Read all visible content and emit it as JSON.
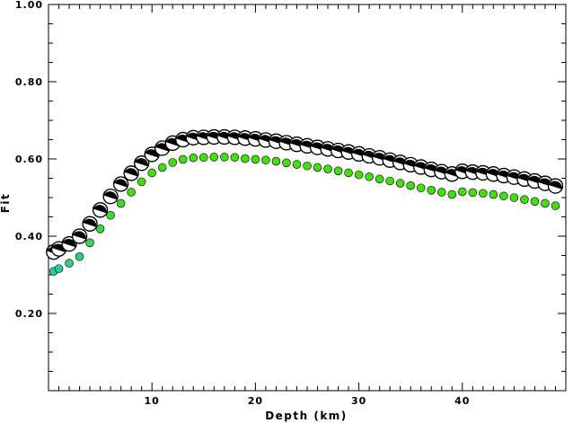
{
  "chart_data": {
    "type": "scatter",
    "title": "",
    "xlabel": "Depth (km)",
    "ylabel": "Fit",
    "xlim": [
      0,
      50
    ],
    "ylim": [
      0,
      1.0
    ],
    "xticks": [
      10,
      20,
      30,
      40
    ],
    "xtick_labels": [
      "10",
      "20",
      "30",
      "40"
    ],
    "yticks": [
      0.2,
      0.4,
      0.6,
      0.8,
      1.0
    ],
    "ytick_labels": [
      "0.20",
      "0.40",
      "0.60",
      "0.80",
      "1.00"
    ],
    "grid": false,
    "legend": "none",
    "series": [
      {
        "marker": "focal-mechanism",
        "x": [
          0.5,
          1,
          2,
          3,
          4,
          5,
          6,
          7,
          8,
          9,
          10,
          11,
          12,
          13,
          14,
          15,
          16,
          17,
          18,
          19,
          20,
          21,
          22,
          23,
          24,
          25,
          26,
          27,
          28,
          29,
          30,
          31,
          32,
          33,
          34,
          35,
          36,
          37,
          38,
          39,
          40,
          41,
          42,
          43,
          44,
          45,
          46,
          47,
          48,
          49
        ],
        "y": [
          0.359,
          0.367,
          0.38,
          0.4,
          0.432,
          0.468,
          0.503,
          0.535,
          0.563,
          0.589,
          0.612,
          0.628,
          0.641,
          0.65,
          0.655,
          0.656,
          0.657,
          0.657,
          0.656,
          0.654,
          0.652,
          0.649,
          0.646,
          0.642,
          0.638,
          0.634,
          0.63,
          0.626,
          0.622,
          0.618,
          0.613,
          0.608,
          0.603,
          0.597,
          0.591,
          0.585,
          0.579,
          0.573,
          0.567,
          0.561,
          0.568,
          0.566,
          0.564,
          0.561,
          0.557,
          0.553,
          0.548,
          0.543,
          0.537,
          0.53
        ]
      },
      {
        "marker": "dot",
        "x": [
          0.5,
          1,
          2,
          3,
          4,
          5,
          6,
          7,
          8,
          9,
          10,
          11,
          12,
          13,
          14,
          15,
          16,
          17,
          18,
          19,
          20,
          21,
          22,
          23,
          24,
          25,
          26,
          27,
          28,
          29,
          30,
          31,
          32,
          33,
          34,
          35,
          36,
          37,
          38,
          39,
          40,
          41,
          42,
          43,
          44,
          45,
          46,
          47,
          48,
          49
        ],
        "y": [
          0.309,
          0.316,
          0.33,
          0.347,
          0.383,
          0.419,
          0.454,
          0.485,
          0.514,
          0.541,
          0.564,
          0.578,
          0.591,
          0.599,
          0.603,
          0.604,
          0.605,
          0.605,
          0.604,
          0.601,
          0.599,
          0.597,
          0.594,
          0.59,
          0.586,
          0.582,
          0.578,
          0.574,
          0.569,
          0.564,
          0.559,
          0.554,
          0.548,
          0.543,
          0.537,
          0.531,
          0.525,
          0.519,
          0.514,
          0.508,
          0.515,
          0.513,
          0.511,
          0.508,
          0.504,
          0.5,
          0.495,
          0.49,
          0.485,
          0.479
        ]
      }
    ],
    "colors": {
      "mechanism_fill": "#000000",
      "mechanism_light": "#ffffff",
      "dot_start": "#22ccaa",
      "dot_end": "#44dd11"
    }
  }
}
